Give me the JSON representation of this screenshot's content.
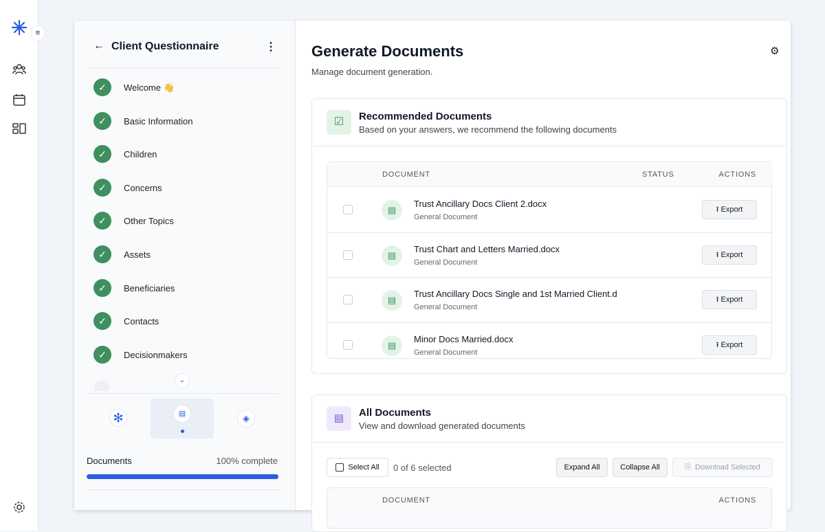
{
  "questionnaire": {
    "title": "Client Questionnaire",
    "steps": [
      "Welcome 👋",
      "Basic Information",
      "Children",
      "Concerns",
      "Other Topics",
      "Assets",
      "Beneficiaries",
      "Contacts",
      "Decisionmakers"
    ],
    "progress": {
      "label": "Documents",
      "status": "100% complete"
    }
  },
  "header": {
    "title": "Generate Documents",
    "subtitle": "Manage document generation."
  },
  "recommended": {
    "title": "Recommended Documents",
    "subtitle": "Based on your answers, we recommend the following documents",
    "columns": [
      "DOCUMENT",
      "STATUS",
      "ACTIONS"
    ],
    "rows": [
      {
        "name": "Trust Ancillary Docs Client 2.docx",
        "type": "General Document",
        "action": "Export"
      },
      {
        "name": "Trust Chart and Letters Married.docx",
        "type": "General Document",
        "action": "Export"
      },
      {
        "name": "Trust Ancillary Docs Single and 1st Married Client.d",
        "type": "General Document",
        "action": "Export"
      },
      {
        "name": "Minor Docs Married.docx",
        "type": "General Document",
        "action": "Export"
      }
    ]
  },
  "all_documents": {
    "title": "All Documents",
    "subtitle": "View and download generated documents",
    "select_all": "Select All",
    "selection": "0 of 6 selected",
    "buttons": [
      "Expand All",
      "Collapse All",
      "Download Selected"
    ],
    "columns": [
      "DOCUMENT",
      "ACTIONS"
    ]
  }
}
